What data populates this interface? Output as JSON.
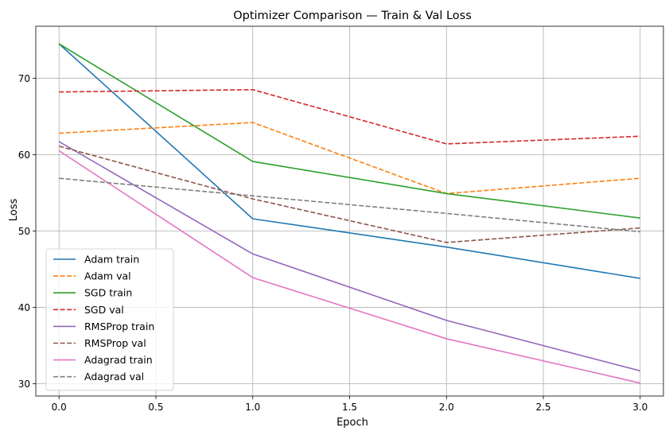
{
  "chart_data": {
    "type": "line",
    "title": "Optimizer Comparison — Train & Val Loss",
    "xlabel": "Epoch",
    "ylabel": "Loss",
    "x": [
      0,
      1,
      2,
      3
    ],
    "xlim": [
      -0.12,
      3.12
    ],
    "ylim": [
      28.4,
      76.8
    ],
    "xticks": [
      "0.0",
      "0.5",
      "1.0",
      "1.5",
      "2.0",
      "2.5",
      "3.0"
    ],
    "xtick_values": [
      0,
      0.5,
      1.0,
      1.5,
      2.0,
      2.5,
      3.0
    ],
    "yticks": [
      "30",
      "40",
      "50",
      "60",
      "70"
    ],
    "ytick_values": [
      30,
      40,
      50,
      60,
      70
    ],
    "grid": true,
    "legend_position": "lower-left",
    "series": [
      {
        "name": "Adam train",
        "values": [
          74.5,
          51.6,
          47.9,
          43.8
        ],
        "color": "#1f77b4",
        "style": "solid"
      },
      {
        "name": "Adam val",
        "values": [
          62.8,
          64.2,
          54.9,
          56.9
        ],
        "color": "#ff7f0e",
        "style": "dashed"
      },
      {
        "name": "SGD train",
        "values": [
          74.5,
          59.1,
          54.9,
          51.7
        ],
        "color": "#2ca02c",
        "style": "solid"
      },
      {
        "name": "SGD val",
        "values": [
          68.2,
          68.5,
          61.4,
          62.4
        ],
        "color": "#d62728",
        "style": "dashed"
      },
      {
        "name": "RMSProp train",
        "values": [
          61.7,
          47.0,
          38.3,
          31.7
        ],
        "color": "#9467bd",
        "style": "solid"
      },
      {
        "name": "RMSProp val",
        "values": [
          61.1,
          54.2,
          48.5,
          50.4
        ],
        "color": "#8c564b",
        "style": "dashed"
      },
      {
        "name": "Adagrad train",
        "values": [
          60.5,
          43.9,
          35.9,
          30.1
        ],
        "color": "#e377c2",
        "style": "solid"
      },
      {
        "name": "Adagrad val",
        "values": [
          56.9,
          54.6,
          52.3,
          49.9
        ],
        "color": "#7f7f7f",
        "style": "dashed"
      }
    ]
  }
}
